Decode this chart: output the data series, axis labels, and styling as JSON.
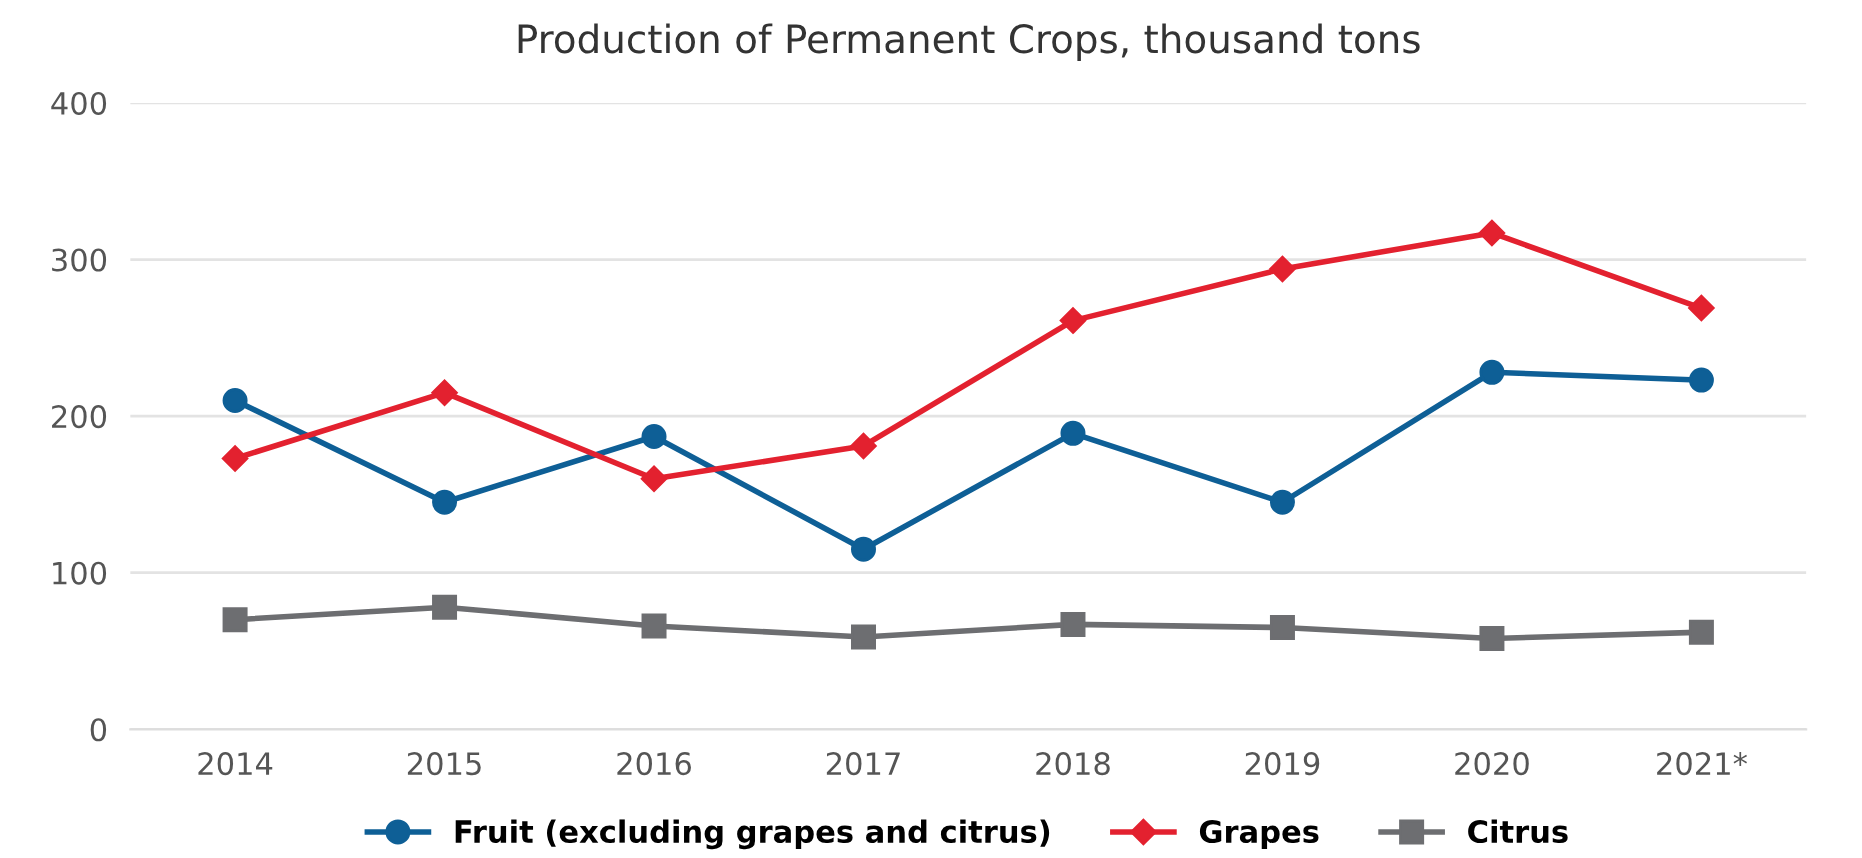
{
  "chart_data": {
    "type": "line",
    "title": "Production of Permanent Crops, thousand tons",
    "categories": [
      "2014",
      "2015",
      "2016",
      "2017",
      "2018",
      "2019",
      "2020",
      "2021*"
    ],
    "series": [
      {
        "name": "Fruit (excluding grapes and citrus)",
        "color": "#0e5f96",
        "marker": "circle",
        "values": [
          210,
          145,
          187,
          115,
          189,
          145,
          228,
          223
        ]
      },
      {
        "name": "Grapes",
        "color": "#e3212f",
        "marker": "diamond",
        "values": [
          173,
          215,
          160,
          181,
          261,
          294,
          317,
          269
        ]
      },
      {
        "name": "Citrus",
        "color": "#6d6e71",
        "marker": "square",
        "values": [
          70,
          78,
          66,
          59,
          67,
          65,
          58,
          62
        ]
      }
    ],
    "ylim": [
      0,
      400
    ],
    "yticks": [
      0,
      100,
      200,
      300,
      400
    ],
    "grid": "y",
    "legend": "bottom"
  }
}
